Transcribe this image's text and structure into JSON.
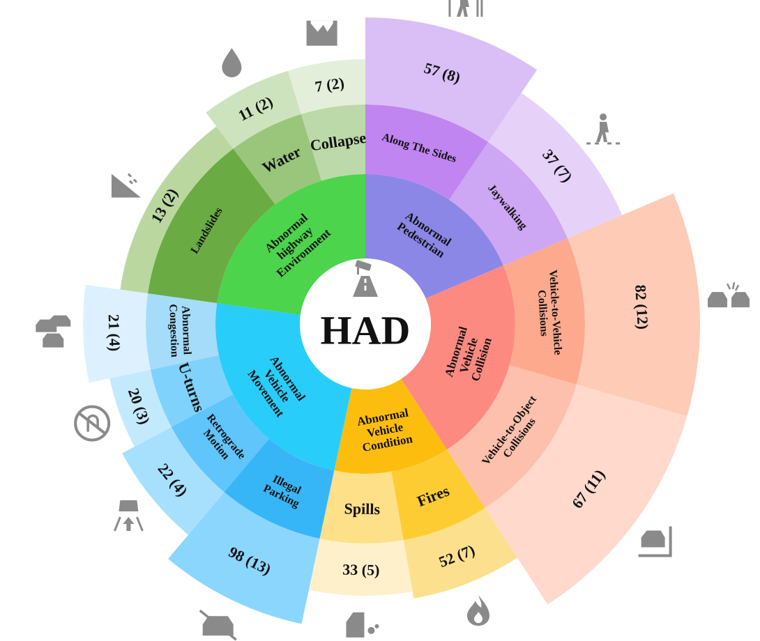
{
  "center": {
    "title": "HAD",
    "icon": "surveillance-camera-road-icon"
  },
  "categories": [
    {
      "id": "environment",
      "label": "Abnormal highway Environment",
      "label_lines": [
        "Abnormal",
        "highway",
        "Environment"
      ],
      "color": "#4cd44c",
      "subcategories": [
        {
          "id": "landslides",
          "label": "Landslides",
          "count": "13 (2)",
          "value": 13,
          "icon": "landslide-icon",
          "mid_color": "#6aab43",
          "outer_color": "#bad79f"
        },
        {
          "id": "water",
          "label": "Water",
          "count": "11 (2)",
          "value": 11,
          "icon": "water-drop-icon",
          "mid_color": "#99c67b",
          "outer_color": "#cde3bd"
        },
        {
          "id": "collapse",
          "label": "Collapse",
          "count": "7 (2)",
          "value": 7,
          "icon": "road-collapse-icon",
          "mid_color": "#bcd9a9",
          "outer_color": "#e4efdb"
        }
      ]
    },
    {
      "id": "pedestrian",
      "label": "Abnormal Pedestrian",
      "label_lines": [
        "Abnormal",
        "Pedestrian"
      ],
      "color": "#8b87e6",
      "subcategories": [
        {
          "id": "along-the-sides",
          "label": "Along The Sides",
          "count": "57 (8)",
          "value": 57,
          "icon": "pedestrian-on-road-icon",
          "mid_color": "#c085f1",
          "outer_color": "#d9bff6"
        },
        {
          "id": "jaywalking",
          "label": "Jaywalking",
          "count": "37 (7)",
          "value": 37,
          "icon": "jaywalking-icon",
          "mid_color": "#cda6f4",
          "outer_color": "#e6d2f9"
        }
      ]
    },
    {
      "id": "collision",
      "label": "Abnormal Vehicle Collision",
      "label_lines": [
        "Abnormal",
        "Vehicle",
        "Collision"
      ],
      "color": "#fd8a80",
      "subcategories": [
        {
          "id": "v2v",
          "label": "Vehicle-to-Vehicle Collisions",
          "label_lines": [
            "Vehicle-to-Vehicle",
            "Collisions"
          ],
          "count": "82 (12)",
          "value": 82,
          "icon": "car-crash-icon",
          "mid_color": "#fca98d",
          "outer_color": "#fdcbb6"
        },
        {
          "id": "v2o",
          "label": "Vehicle-to-Object Collisions",
          "label_lines": [
            "Vehicle-to-Object",
            "Collisions"
          ],
          "count": "67 (11)",
          "value": 67,
          "icon": "car-hits-wall-icon",
          "mid_color": "#fdc0ac",
          "outer_color": "#fed9cc"
        }
      ]
    },
    {
      "id": "condition",
      "label": "Abnormal Vehicle Condition",
      "label_lines": [
        "Abnormal",
        "Vehicle",
        "Condition"
      ],
      "color": "#fdbd0e",
      "subcategories": [
        {
          "id": "fires",
          "label": "Fires",
          "count": "52 (7)",
          "value": 52,
          "icon": "fire-icon",
          "mid_color": "#fdcc33",
          "outer_color": "#fde08e"
        },
        {
          "id": "spills",
          "label": "Spills",
          "count": "33 (5)",
          "value": 33,
          "icon": "car-spill-icon",
          "mid_color": "#fde087",
          "outer_color": "#fef0cb"
        }
      ]
    },
    {
      "id": "movement",
      "label": "Abnormal Vehicle Movement",
      "label_lines": [
        "Abnormal",
        "Vehicle",
        "Movement"
      ],
      "color": "#29cdfa",
      "subcategories": [
        {
          "id": "illegal-parking",
          "label": "Illegal Parking",
          "label_lines": [
            "Illegal",
            "Parking"
          ],
          "count": "98 (13)",
          "value": 98,
          "icon": "no-parking-icon",
          "mid_color": "#36b6f7",
          "outer_color": "#8bd6fc"
        },
        {
          "id": "retrograde",
          "label": "Retrograde Motion",
          "label_lines": [
            "Retrograde",
            "Motion"
          ],
          "count": "22 (4)",
          "value": 22,
          "icon": "wrong-way-icon",
          "mid_color": "#5fc5fa",
          "outer_color": "#a7e0fc"
        },
        {
          "id": "u-turns",
          "label": "U-turns",
          "count": "20 (3)",
          "value": 20,
          "icon": "no-u-turn-icon",
          "mid_color": "#7fd2fb",
          "outer_color": "#c3e9fd"
        },
        {
          "id": "congestion",
          "label": "Abnormal Congestion",
          "label_lines": [
            "Abnormal",
            "Congestion"
          ],
          "count": "21 (4)",
          "value": 21,
          "icon": "traffic-jam-icon",
          "mid_color": "#a5dcfa",
          "outer_color": "#dcf1fd"
        }
      ]
    }
  ]
}
